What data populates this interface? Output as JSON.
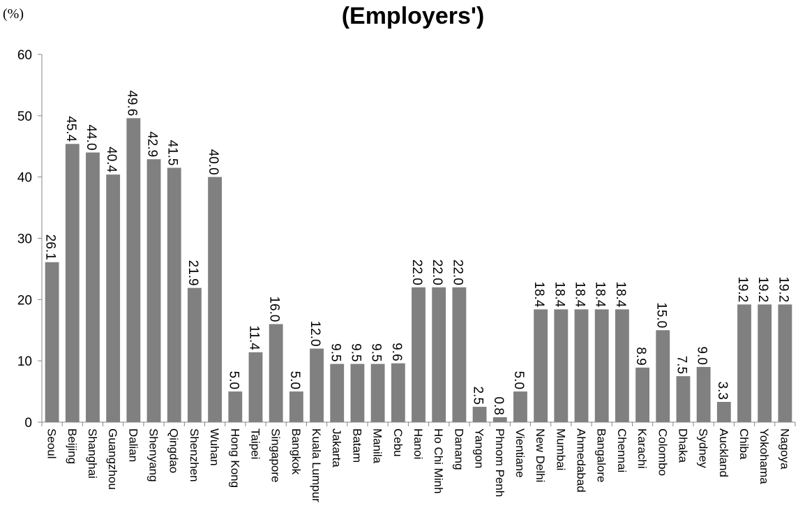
{
  "chart_data": {
    "type": "bar",
    "title": "(Employers')",
    "unit_label": "(%)",
    "xlabel": "",
    "ylabel": "",
    "ylim": [
      0,
      60
    ],
    "yticks": [
      0,
      10,
      20,
      30,
      40,
      50,
      60
    ],
    "grid": false,
    "bar_color": "#808080",
    "categories": [
      "Seoul",
      "Beijing",
      "Shanghai",
      "Guangzhou",
      "Dalian",
      "Shenyang",
      "Qingdao",
      "Shenzhen",
      "Wuhan",
      "Hong Kong",
      "Taipei",
      "Singapore",
      "Bangkok",
      "Kuala Lumpur",
      "Jakarta",
      "Batam",
      "Manila",
      "Cebu",
      "Hanoi",
      "Ho Chi Minh",
      "Danang",
      "Yangon",
      "Phnom Penh",
      "Vientiane",
      "New Delhi",
      "Mumbai",
      "Ahmedabad",
      "Bangalore",
      "Chennai",
      "Karachi",
      "Colombo",
      "Dhaka",
      "Sydney",
      "Auckland",
      "Chiba",
      "Yokohama",
      "Nagoya"
    ],
    "values": [
      26.1,
      45.4,
      44.0,
      40.4,
      49.6,
      42.9,
      41.5,
      21.9,
      40.0,
      5.0,
      11.4,
      16.0,
      5.0,
      12.0,
      9.5,
      9.5,
      9.5,
      9.6,
      22.0,
      22.0,
      22.0,
      2.5,
      0.8,
      5.0,
      18.4,
      18.4,
      18.4,
      18.4,
      18.4,
      8.9,
      15.0,
      7.5,
      9.0,
      3.3,
      19.2,
      19.2,
      19.2
    ],
    "value_labels": [
      "26.1",
      "45.4",
      "44.0",
      "40.4",
      "49.6",
      "42.9",
      "41.5",
      "21.9",
      "40.0",
      "5.0",
      "11.4",
      "16.0",
      "5.0",
      "12.0",
      "9.5",
      "9.5",
      "9.5",
      "9.6",
      "22.0",
      "22.0",
      "22.0",
      "2.5",
      "0.8",
      "5.0",
      "18.4",
      "18.4",
      "18.4",
      "18.4",
      "18.4",
      "8.9",
      "15.0",
      "7.5",
      "9.0",
      "3.3",
      "19.2",
      "19.2",
      "19.2"
    ]
  }
}
